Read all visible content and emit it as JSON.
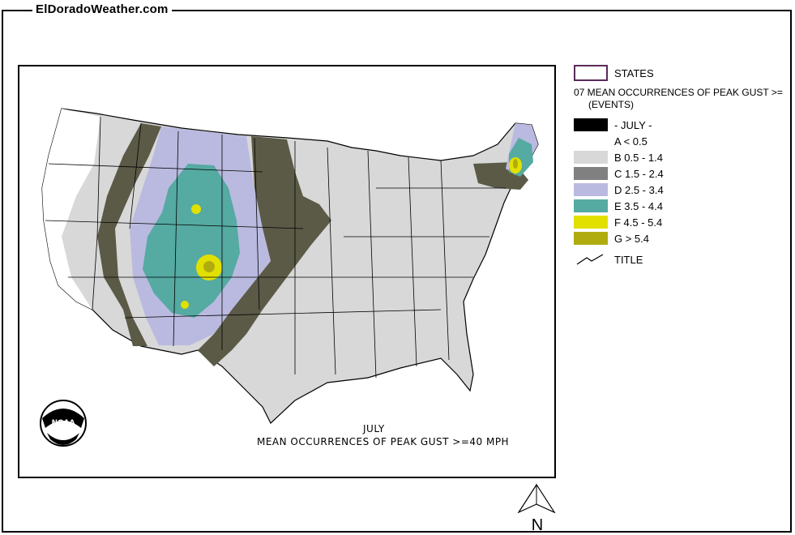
{
  "site": {
    "title": "ElDoradoWeather.com"
  },
  "map": {
    "caption_line1": "JULY",
    "caption_line2": "MEAN OCCURRENCES OF PEAK GUST >=40 MPH",
    "logo_text": "NOAA",
    "north_label": "N"
  },
  "legend": {
    "states_label": "STATES",
    "title_line1": "07 MEAN OCCURRENCES OF PEAK GUST >=",
    "title_line2": "(EVENTS)",
    "month_label": "- JULY -",
    "title_symbol_label": "TITLE",
    "classes": [
      {
        "label": "A < 0.5",
        "color": "#ffffff"
      },
      {
        "label": "B 0.5 - 1.4",
        "color": "#d8d8d8"
      },
      {
        "label": "C 1.5 - 2.4",
        "color": "#808080"
      },
      {
        "label": "D 2.5 - 3.4",
        "color": "#babae0"
      },
      {
        "label": "E 3.5 - 4.4",
        "color": "#55aaa2"
      },
      {
        "label": "F 4.5 - 5.4",
        "color": "#e2e000"
      },
      {
        "label": "G > 5.4",
        "color": "#b0ac10"
      }
    ],
    "band_color": "#5b5a47"
  }
}
